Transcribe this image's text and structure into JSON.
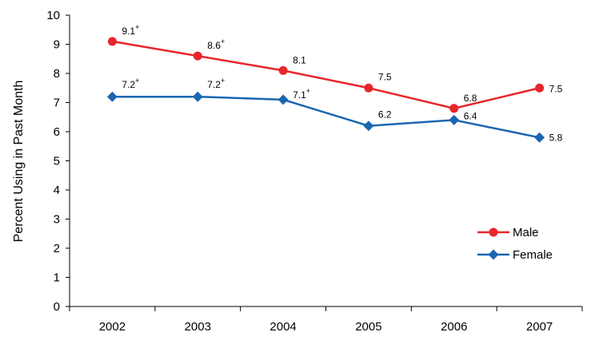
{
  "chart_data": {
    "type": "line",
    "title": "",
    "xlabel": "",
    "ylabel": "Percent Using in Past Month",
    "ylim": [
      0,
      10
    ],
    "yticks": [
      "0",
      "1",
      "2",
      "3",
      "4",
      "5",
      "6",
      "7",
      "8",
      "9",
      "10"
    ],
    "categories": [
      "2002",
      "2003",
      "2004",
      "2005",
      "2006",
      "2007"
    ],
    "grid": false,
    "legend_position": "bottom-right",
    "series": [
      {
        "name": "Male",
        "color": "#e8262b",
        "marker": "circle",
        "values": [
          9.1,
          8.6,
          8.1,
          7.5,
          6.8,
          7.5
        ],
        "labels": [
          "9.1",
          "8.6",
          "8.1",
          "7.5",
          "6.8",
          "7.5"
        ],
        "superscripts": [
          "+",
          "+",
          "",
          "",
          "",
          ""
        ]
      },
      {
        "name": "Female",
        "color": "#1a66b0",
        "marker": "diamond",
        "values": [
          7.2,
          7.2,
          7.1,
          6.2,
          6.4,
          5.8
        ],
        "labels": [
          "7.2",
          "7.2",
          "7.1",
          "6.2",
          "6.4",
          "5.8"
        ],
        "superscripts": [
          "+",
          "+",
          "+",
          "",
          "",
          ""
        ]
      }
    ]
  }
}
